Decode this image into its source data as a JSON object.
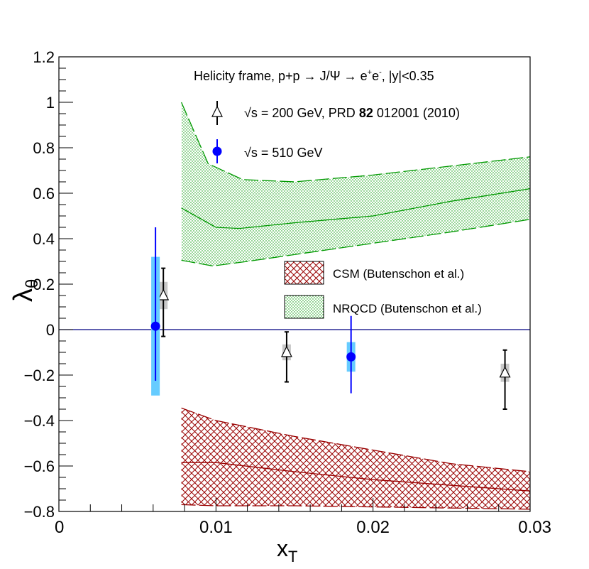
{
  "chart_data": {
    "type": "scatter",
    "title": "Helicity frame, p+p → J/Ψ → e⁺e⁻, |y|<0.35",
    "title_parts": {
      "prefix": "Helicity frame, p+p ",
      "arrow1": "→",
      "jpsi": " J/Ψ ",
      "arrow2": "→",
      "e1": " e",
      "sup1": "+",
      "e2": "e",
      "sup2": "-",
      "suffix": ", |y|<0.35"
    },
    "xlabel": {
      "main": "x",
      "sub": "T"
    },
    "ylabel": {
      "main": "λ",
      "sub": "θ"
    },
    "xlim": [
      0,
      0.03
    ],
    "ylim": [
      -0.8,
      1.2
    ],
    "x_ticks": [
      {
        "v": 0,
        "label": "0"
      },
      {
        "v": 0.01,
        "label": "0.01"
      },
      {
        "v": 0.02,
        "label": "0.02"
      },
      {
        "v": 0.03,
        "label": "0.03"
      }
    ],
    "y_ticks": [
      {
        "v": -0.8,
        "label": "−0.8"
      },
      {
        "v": -0.6,
        "label": "−0.6"
      },
      {
        "v": -0.4,
        "label": "−0.4"
      },
      {
        "v": -0.2,
        "label": "−0.2"
      },
      {
        "v": 0,
        "label": "0"
      },
      {
        "v": 0.2,
        "label": "0.2"
      },
      {
        "v": 0.4,
        "label": "0.4"
      },
      {
        "v": 0.6,
        "label": "0.6"
      },
      {
        "v": 0.8,
        "label": "0.8"
      },
      {
        "v": 1,
        "label": "1"
      },
      {
        "v": 1.2,
        "label": "1.2"
      }
    ],
    "zero_line": 0,
    "series": [
      {
        "name": "200",
        "legend": {
          "sqrt": "√s",
          "text1": " = 200 GeV, PRD ",
          "bold": "82",
          "text2": " 012001 (2010)"
        },
        "marker": "open-triangle",
        "color": "#000000",
        "syst_color": "#c8c8c8",
        "points": [
          {
            "x": 0.00665,
            "y": 0.15,
            "elo": 0.18,
            "ehi": 0.12,
            "syst": 0.06
          },
          {
            "x": 0.0145,
            "y": -0.1,
            "elo": 0.13,
            "ehi": 0.09,
            "syst": 0.035
          },
          {
            "x": 0.0284,
            "y": -0.19,
            "elo": 0.16,
            "ehi": 0.1,
            "syst": 0.04
          }
        ]
      },
      {
        "name": "510",
        "legend": {
          "sqrt": "√s",
          "text1": " = 510 GeV",
          "bold": "",
          "text2": ""
        },
        "marker": "filled-circle",
        "color": "#0000ff",
        "syst_color": "#66ccff",
        "points": [
          {
            "x": 0.00615,
            "y": 0.015,
            "elo": 0.24,
            "ehi": 0.435,
            "syst": 0.305
          },
          {
            "x": 0.0186,
            "y": -0.12,
            "elo": 0.16,
            "ehi": 0.18,
            "syst": 0.065
          }
        ]
      }
    ],
    "bands": [
      {
        "name": "NRQCD",
        "label": "NRQCD (Butenschon et al.)",
        "pattern": "dots",
        "color": "#009900",
        "upper": [
          [
            0.0078,
            1.0
          ],
          [
            0.0095,
            0.73
          ],
          [
            0.0117,
            0.66
          ],
          [
            0.015,
            0.65
          ],
          [
            0.02,
            0.68
          ],
          [
            0.025,
            0.72
          ],
          [
            0.03,
            0.76
          ]
        ],
        "central": [
          [
            0.0078,
            0.535
          ],
          [
            0.01,
            0.45
          ],
          [
            0.0115,
            0.445
          ],
          [
            0.015,
            0.47
          ],
          [
            0.02,
            0.5
          ],
          [
            0.025,
            0.565
          ],
          [
            0.03,
            0.62
          ]
        ],
        "lower": [
          [
            0.0078,
            0.305
          ],
          [
            0.0098,
            0.28
          ],
          [
            0.012,
            0.3
          ],
          [
            0.015,
            0.33
          ],
          [
            0.02,
            0.38
          ],
          [
            0.025,
            0.43
          ],
          [
            0.03,
            0.485
          ]
        ]
      },
      {
        "name": "CSM",
        "label": "CSM (Butenschon et al.)",
        "pattern": "cross",
        "color": "#990000",
        "upper": [
          [
            0.0078,
            -0.345
          ],
          [
            0.01,
            -0.4
          ],
          [
            0.015,
            -0.47
          ],
          [
            0.02,
            -0.53
          ],
          [
            0.025,
            -0.59
          ],
          [
            0.03,
            -0.625
          ]
        ],
        "central": [
          [
            0.0078,
            -0.585
          ],
          [
            0.01,
            -0.585
          ],
          [
            0.015,
            -0.625
          ],
          [
            0.02,
            -0.66
          ],
          [
            0.025,
            -0.685
          ],
          [
            0.03,
            -0.71
          ]
        ],
        "lower": [
          [
            0.0078,
            -0.77
          ],
          [
            0.01,
            -0.775
          ],
          [
            0.015,
            -0.775
          ],
          [
            0.02,
            -0.78
          ],
          [
            0.025,
            -0.785
          ],
          [
            0.03,
            -0.79
          ]
        ]
      }
    ]
  }
}
